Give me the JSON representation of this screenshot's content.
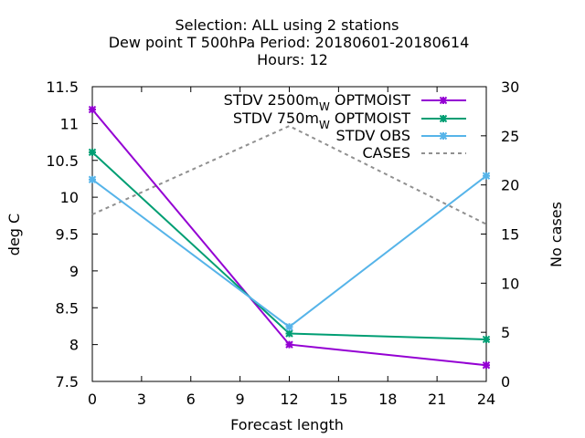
{
  "chart_data": {
    "type": "line",
    "title_lines": [
      "Selection: ALL using     2 stations",
      "Dew point T 500hPa   Period: 20180601-20180614",
      "Hours:  12"
    ],
    "xlabel": "Forecast length",
    "ylabel": "deg C",
    "y2label": "No cases",
    "x_ticks": [
      0,
      3,
      6,
      9,
      12,
      15,
      18,
      21,
      24
    ],
    "xlim": [
      0,
      24
    ],
    "y_ticks": [
      "7.5",
      "8",
      "8.5",
      "9",
      "9.5",
      "10",
      "10.5",
      "11",
      "11.5"
    ],
    "ylim": [
      7.5,
      11.5
    ],
    "y2_ticks": [
      0,
      5,
      10,
      15,
      20,
      25,
      30
    ],
    "y2lim": [
      0,
      30
    ],
    "grid": false,
    "legend_position": "top-right",
    "series": [
      {
        "name": "STDV 2500m",
        "name_sub": "W",
        "name_suffix": " OPTMOIST",
        "axis": "y1",
        "color": "#9400d3",
        "marker": "cross",
        "dash": false,
        "x": [
          0,
          12,
          24
        ],
        "y": [
          11.19,
          8.0,
          7.72
        ]
      },
      {
        "name": "STDV 750m",
        "name_sub": "W",
        "name_suffix": " OPTMOIST",
        "axis": "y1",
        "color": "#009e73",
        "marker": "cross",
        "dash": false,
        "x": [
          0,
          12,
          24
        ],
        "y": [
          10.61,
          8.15,
          8.07
        ]
      },
      {
        "name": "STDV OBS",
        "name_sub": "",
        "name_suffix": "",
        "axis": "y1",
        "color": "#56b4e9",
        "marker": "cross",
        "dash": false,
        "x": [
          0,
          12,
          24
        ],
        "y": [
          10.24,
          8.24,
          10.29
        ]
      },
      {
        "name": "CASES",
        "name_sub": "",
        "name_suffix": "",
        "axis": "y2",
        "color": "#909090",
        "marker": "none",
        "dash": true,
        "x": [
          0,
          12,
          24
        ],
        "y": [
          17,
          26,
          16
        ]
      }
    ]
  }
}
